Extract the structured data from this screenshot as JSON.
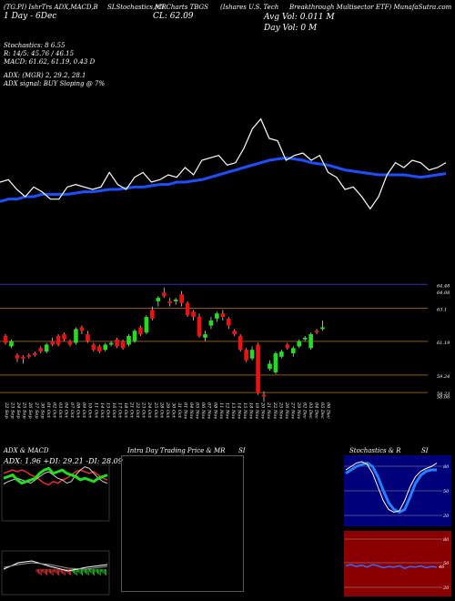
{
  "header": {
    "line1_left": "(TG.PI) IshrTrs ADX,MACD,B",
    "line1_mid1": "SLStochastics,MR",
    "line1_mid2": "(Cl Charts TBGS",
    "line1_mid3": "(Ishares U.S. Tech",
    "line1_right": "Breakthrough Multisector ETF) MunafaSutra.com",
    "line2_left": "1 Day - 6Dec",
    "close_label": "CL: 62.09",
    "avg_vol": "Avg Vol: 0.011 M",
    "day_vol": "Day Vol: 0   M"
  },
  "indicators": {
    "stoch_line": "Stochastics: 8                      6.55",
    "r_line": "R: 14/5: 45.76  / 46.15",
    "macd_line": "MACD: 61.62, 61.19, 0.43 D",
    "adx_line": "ADX:                                     (MGR) 2, 29.2, 28.1",
    "adx_signal": "ADX  signal:                         BUY Sloping @ 7%"
  },
  "price_axis": [
    "64.48",
    "64.08",
    "63.1",
    "61.19",
    "59.24",
    "58.23",
    "58.06"
  ],
  "x_dates": [
    "22 Sep",
    "23 Sep",
    "24 Sep",
    "25 Sep",
    "26 Sep",
    "27 Sep",
    "30 Sep",
    "01 Oct",
    "02 Oct",
    "03 Oct",
    "04 Oct",
    "07 Oct",
    "08 Oct",
    "09 Oct",
    "10 Oct",
    "11 Oct",
    "14 Oct",
    "15 Oct",
    "16 Oct",
    "17 Oct",
    "18 Oct",
    "21 Oct",
    "22 Oct",
    "23 Oct",
    "24 Oct",
    "25 Oct",
    "28 Oct",
    "29 Oct",
    "30 Oct",
    "31 Oct",
    "01 Nov",
    "04 Nov",
    "05 Nov",
    "06 Nov",
    "07 Nov",
    "08 Nov",
    "11 Nov",
    "12 Nov",
    "13 Nov",
    "14 Nov",
    "15 Nov",
    "18 Nov",
    "19 Nov",
    "20 Nov",
    "21 Nov",
    "22 Nov",
    "25 Nov",
    "26 Nov",
    "27 Nov",
    "29 Nov",
    "02 Dec",
    "03 Dec",
    "04 Dec",
    "05 Dec",
    "06 Dec"
  ],
  "panels": {
    "adx_title": "ADX  & MACD",
    "adx_values": "ADX: 1.96  +DI: 29.21 -DI: 28.09",
    "intraday_title": "Intra  Day Trading Price  & MR",
    "intraday_si": "SI",
    "stoch_title": "Stochastics & R",
    "stoch_si": "SI",
    "stoch_ticks": [
      "80",
      "50",
      "20"
    ],
    "r_ticks": [
      "80",
      "50",
      "20"
    ],
    "r_value": "46"
  },
  "chart_data": {
    "type": "candlestick",
    "candles": [
      {
        "o": 61.5,
        "c": 61.1,
        "h": 61.6,
        "l": 61.0
      },
      {
        "o": 60.9,
        "c": 61.2,
        "h": 61.3,
        "l": 60.8
      },
      {
        "o": 60.4,
        "c": 60.2,
        "h": 60.5,
        "l": 60.0
      },
      {
        "o": 60.3,
        "c": 60.2,
        "h": 60.4,
        "l": 59.9
      },
      {
        "o": 60.4,
        "c": 60.3,
        "h": 60.5,
        "l": 60.2
      },
      {
        "o": 60.5,
        "c": 60.4,
        "h": 60.6,
        "l": 60.3
      },
      {
        "o": 60.8,
        "c": 60.6,
        "h": 60.9,
        "l": 60.5
      },
      {
        "o": 60.6,
        "c": 61.0,
        "h": 61.1,
        "l": 60.5
      },
      {
        "o": 61.2,
        "c": 61.0,
        "h": 61.4,
        "l": 60.9
      },
      {
        "o": 61.5,
        "c": 61.0,
        "h": 61.6,
        "l": 60.9
      },
      {
        "o": 61.6,
        "c": 61.3,
        "h": 61.7,
        "l": 61.2
      },
      {
        "o": 61.2,
        "c": 61.0,
        "h": 61.3,
        "l": 60.9
      },
      {
        "o": 61.1,
        "c": 61.9,
        "h": 62.0,
        "l": 61.0
      },
      {
        "o": 62.0,
        "c": 61.8,
        "h": 62.1,
        "l": 61.6
      },
      {
        "o": 61.6,
        "c": 61.2,
        "h": 61.8,
        "l": 61.1
      },
      {
        "o": 61.0,
        "c": 60.7,
        "h": 61.1,
        "l": 60.6
      },
      {
        "o": 60.9,
        "c": 60.6,
        "h": 61.0,
        "l": 60.5
      },
      {
        "o": 60.7,
        "c": 61.0,
        "h": 61.1,
        "l": 60.6
      },
      {
        "o": 61.0,
        "c": 61.1,
        "h": 61.2,
        "l": 60.9
      },
      {
        "o": 61.3,
        "c": 60.9,
        "h": 61.4,
        "l": 60.8
      },
      {
        "o": 61.2,
        "c": 60.8,
        "h": 61.3,
        "l": 60.7
      },
      {
        "o": 61.0,
        "c": 61.5,
        "h": 61.6,
        "l": 60.9
      },
      {
        "o": 61.2,
        "c": 61.8,
        "h": 61.9,
        "l": 61.1
      },
      {
        "o": 62.0,
        "c": 61.6,
        "h": 62.1,
        "l": 61.5
      },
      {
        "o": 61.7,
        "c": 62.6,
        "h": 62.7,
        "l": 61.6
      },
      {
        "o": 63.0,
        "c": 62.5,
        "h": 63.2,
        "l": 62.4
      },
      {
        "o": 63.5,
        "c": 63.7,
        "h": 63.8,
        "l": 63.2
      },
      {
        "o": 64.0,
        "c": 63.8,
        "h": 64.3,
        "l": 63.7
      },
      {
        "o": 63.5,
        "c": 63.4,
        "h": 63.7,
        "l": 63.2
      },
      {
        "o": 63.5,
        "c": 63.6,
        "h": 63.7,
        "l": 63.3
      },
      {
        "o": 63.9,
        "c": 63.4,
        "h": 64.1,
        "l": 63.2
      },
      {
        "o": 63.4,
        "c": 62.7,
        "h": 63.5,
        "l": 62.6
      },
      {
        "o": 62.9,
        "c": 62.6,
        "h": 63.0,
        "l": 62.4
      },
      {
        "o": 62.6,
        "c": 61.5,
        "h": 62.8,
        "l": 61.4
      },
      {
        "o": 61.4,
        "c": 61.6,
        "h": 61.8,
        "l": 61.2
      },
      {
        "o": 62.1,
        "c": 62.4,
        "h": 62.6,
        "l": 61.9
      },
      {
        "o": 62.5,
        "c": 62.8,
        "h": 62.9,
        "l": 62.3
      },
      {
        "o": 62.8,
        "c": 62.6,
        "h": 63.0,
        "l": 62.4
      },
      {
        "o": 62.5,
        "c": 62.1,
        "h": 62.6,
        "l": 61.9
      },
      {
        "o": 61.8,
        "c": 61.6,
        "h": 61.9,
        "l": 61.5
      },
      {
        "o": 61.5,
        "c": 60.7,
        "h": 61.6,
        "l": 60.6
      },
      {
        "o": 60.7,
        "c": 60.1,
        "h": 60.8,
        "l": 60.0
      },
      {
        "o": 60.2,
        "c": 60.7,
        "h": 60.9,
        "l": 60.1
      },
      {
        "o": 61.0,
        "c": 58.2,
        "h": 61.1,
        "l": 58.1
      },
      {
        "o": 58.1,
        "c": 58.0,
        "h": 58.3,
        "l": 57.7
      },
      {
        "o": 59.6,
        "c": 59.9,
        "h": 60.1,
        "l": 59.5
      },
      {
        "o": 59.4,
        "c": 60.5,
        "h": 60.6,
        "l": 59.3
      },
      {
        "o": 60.3,
        "c": 60.6,
        "h": 60.7,
        "l": 60.2
      },
      {
        "o": 61.0,
        "c": 60.8,
        "h": 61.1,
        "l": 60.7
      },
      {
        "o": 60.5,
        "c": 60.8,
        "h": 60.9,
        "l": 60.3
      },
      {
        "o": 60.9,
        "c": 61.2,
        "h": 61.3,
        "l": 60.8
      },
      {
        "o": 61.3,
        "c": 61.4,
        "h": 61.5,
        "l": 61.2
      },
      {
        "o": 60.8,
        "c": 61.6,
        "h": 61.7,
        "l": 60.7
      },
      {
        "o": 61.8,
        "c": 61.7,
        "h": 61.9,
        "l": 61.6
      },
      {
        "o": 61.9,
        "c": 62.0,
        "h": 62.4,
        "l": 61.8
      }
    ],
    "ylim": [
      57.5,
      64.6
    ],
    "overlay_price": [
      61.5,
      61.6,
      61.2,
      60.9,
      61.3,
      61.1,
      60.8,
      60.8,
      61.3,
      61.4,
      61.3,
      61.2,
      61.3,
      61.9,
      61.4,
      61.2,
      61.7,
      61.9,
      61.5,
      61.6,
      61.8,
      61.7,
      62.1,
      61.8,
      62.4,
      62.5,
      62.6,
      62.2,
      62.3,
      62.9,
      63.7,
      64.1,
      63.3,
      63.2,
      62.4,
      62.6,
      62.7,
      62.4,
      62.6,
      61.9,
      61.7,
      61.2,
      61.3,
      60.9,
      60.4,
      60.9,
      61.8,
      62.3,
      62.1,
      62.4,
      62.3,
      62.0,
      62.1,
      62.3
    ],
    "overlay_ma": [
      60.7,
      60.8,
      60.8,
      60.9,
      60.9,
      61.0,
      61.0,
      61.0,
      61.0,
      61.05,
      61.1,
      61.1,
      61.15,
      61.2,
      61.2,
      61.25,
      61.3,
      61.3,
      61.35,
      61.4,
      61.4,
      61.5,
      61.5,
      61.55,
      61.6,
      61.7,
      61.8,
      61.9,
      62.0,
      62.1,
      62.2,
      62.3,
      62.4,
      62.45,
      62.5,
      62.45,
      62.4,
      62.3,
      62.25,
      62.2,
      62.1,
      62.0,
      61.95,
      61.9,
      61.85,
      61.8,
      61.8,
      61.8,
      61.8,
      61.75,
      61.7,
      61.75,
      61.8,
      61.85
    ],
    "overlay_ylim": [
      60.0,
      64.5
    ],
    "adx": {
      "green": [
        52,
        54,
        56,
        50,
        46,
        48,
        50,
        52,
        58,
        62,
        64,
        58,
        60,
        62,
        58,
        56,
        54,
        50,
        52,
        50,
        48,
        52,
        54,
        56
      ],
      "red": [
        58,
        60,
        62,
        60,
        62,
        60,
        56,
        54,
        50,
        46,
        44,
        48,
        46,
        50,
        52,
        56,
        60,
        62,
        60,
        58,
        60,
        56,
        52,
        50
      ],
      "white": [
        45,
        48,
        50,
        52,
        50,
        48,
        46,
        50,
        54,
        58,
        60,
        56,
        52,
        50,
        46,
        48,
        56,
        62,
        66,
        64,
        58,
        52,
        48,
        46
      ]
    },
    "stoch": [
      80,
      85,
      90,
      92,
      88,
      75,
      55,
      35,
      22,
      18,
      20,
      35,
      55,
      70,
      78,
      82,
      85,
      90
    ],
    "stoch2": [
      75,
      80,
      85,
      88,
      90,
      85,
      70,
      50,
      32,
      22,
      18,
      22,
      40,
      60,
      72,
      78,
      80,
      80
    ],
    "r": [
      48,
      50,
      47,
      49,
      46,
      50,
      48,
      45,
      47,
      46,
      48,
      44,
      47,
      46,
      48,
      45,
      47,
      46
    ]
  }
}
